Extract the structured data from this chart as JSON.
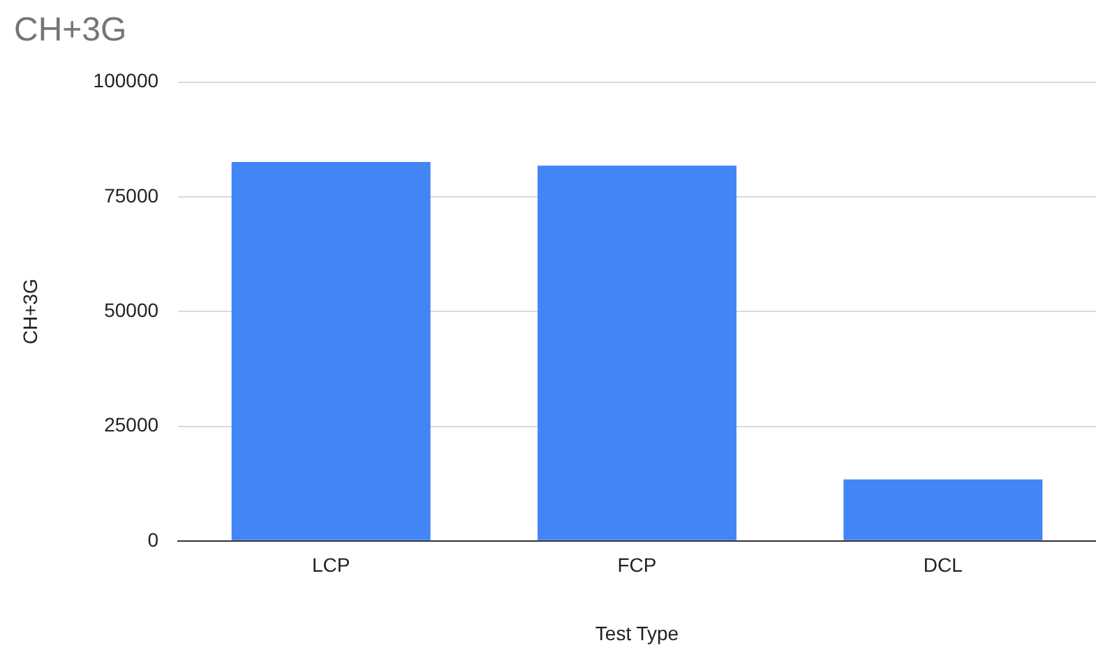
{
  "chart_data": {
    "type": "bar",
    "title": "CH+3G",
    "xlabel": "Test Type",
    "ylabel": "CH+3G",
    "categories": [
      "LCP",
      "FCP",
      "DCL"
    ],
    "series": [
      {
        "color": "#4285f4",
        "values": [
          82600,
          81800,
          13400
        ]
      }
    ],
    "ylim": [
      0,
      100000
    ],
    "yticks": [
      0,
      25000,
      50000,
      75000,
      100000
    ],
    "grid": "y",
    "legend": false
  }
}
